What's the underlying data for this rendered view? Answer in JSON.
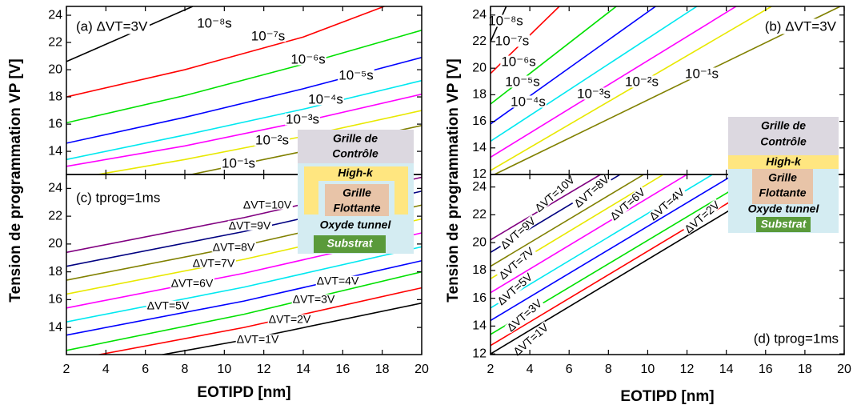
{
  "chart_data": [
    {
      "type": "line",
      "panel_label": "(a) ΔVT=3V",
      "ylabel": "Tension de programmation VP [V]",
      "xlim": [
        2,
        20
      ],
      "xticks": [
        2,
        4,
        6,
        8,
        10,
        12,
        14,
        16,
        18,
        20
      ],
      "ylim": [
        12.3,
        24.65
      ],
      "yticks": [
        14,
        16,
        18,
        20,
        22,
        24
      ],
      "series": [
        {
          "name": "10⁻⁸s",
          "color": "#000000",
          "x": [
            2,
            5,
            8.4
          ],
          "values": [
            20.6,
            22.5,
            24.65
          ]
        },
        {
          "name": "10⁻⁷s",
          "color": "#ff0000",
          "x": [
            2,
            8,
            14,
            18.1
          ],
          "values": [
            18.0,
            20.0,
            22.4,
            24.65
          ]
        },
        {
          "name": "10⁻⁶s",
          "color": "#00e000",
          "x": [
            2,
            8,
            14,
            20
          ],
          "values": [
            16.1,
            18.1,
            20.4,
            22.9
          ]
        },
        {
          "name": "10⁻⁵s",
          "color": "#0000ff",
          "x": [
            2,
            8,
            14,
            20
          ],
          "values": [
            14.6,
            16.5,
            18.6,
            20.9
          ]
        },
        {
          "name": "10⁻⁴s",
          "color": "#00e8f0",
          "x": [
            2,
            8,
            14,
            20
          ],
          "values": [
            13.4,
            15.2,
            17.1,
            19.2
          ]
        },
        {
          "name": "10⁻³s",
          "color": "#ff00ff",
          "x": [
            2,
            8,
            14,
            20
          ],
          "values": [
            12.9,
            14.4,
            16.2,
            18.2
          ]
        },
        {
          "name": "10⁻²s",
          "color": "#e8e800",
          "x": [
            2,
            8,
            14,
            20
          ],
          "values": [
            11.9,
            13.4,
            15.1,
            17.0
          ]
        },
        {
          "name": "10⁻¹s",
          "color": "#808000",
          "x": [
            2,
            8,
            14,
            20
          ],
          "values": [
            10.5,
            12.2,
            14.0,
            15.9
          ]
        }
      ]
    },
    {
      "type": "line",
      "panel_label": "(b) ΔVT=3V",
      "ylabel": "Tension de programmation VP [V]",
      "xlim": [
        2,
        20
      ],
      "xticks": [
        2,
        4,
        6,
        8,
        10,
        12,
        14,
        16,
        18,
        20
      ],
      "ylim": [
        12,
        24.65
      ],
      "yticks": [
        12,
        14,
        16,
        18,
        20,
        22,
        24
      ],
      "series": [
        {
          "name": "10⁻⁸s",
          "color": "#000000",
          "x": [
            2,
            2.8
          ],
          "values": [
            22.0,
            24.65
          ]
        },
        {
          "name": "10⁻⁷s",
          "color": "#ff0000",
          "x": [
            2,
            5.5
          ],
          "values": [
            19.6,
            24.65
          ]
        },
        {
          "name": "10⁻⁶s",
          "color": "#00e000",
          "x": [
            2,
            8.4
          ],
          "values": [
            17.3,
            24.65
          ]
        },
        {
          "name": "10⁻⁵s",
          "color": "#0000ff",
          "x": [
            2,
            10.4
          ],
          "values": [
            15.8,
            24.65
          ]
        },
        {
          "name": "10⁻⁴s",
          "color": "#00e8f0",
          "x": [
            2,
            12.5
          ],
          "values": [
            14.5,
            24.65
          ]
        },
        {
          "name": "10⁻³s",
          "color": "#ff00ff",
          "x": [
            2,
            14.5
          ],
          "values": [
            13.3,
            24.65
          ]
        },
        {
          "name": "10⁻²s",
          "color": "#e8e800",
          "x": [
            2,
            16.3
          ],
          "values": [
            12.3,
            24.65
          ]
        },
        {
          "name": "10⁻¹s",
          "color": "#808000",
          "x": [
            2.2,
            19.8
          ],
          "values": [
            12.0,
            24.65
          ]
        }
      ]
    },
    {
      "type": "line",
      "panel_label": "(c) tprog=1ms",
      "xlabel": "EOTIPD [nm]",
      "xlim": [
        2,
        20
      ],
      "xticks": [
        2,
        4,
        6,
        8,
        10,
        12,
        14,
        16,
        18,
        20
      ],
      "ylim": [
        12.05,
        25.0
      ],
      "yticks": [
        14,
        16,
        18,
        20,
        22,
        24
      ],
      "series": [
        {
          "name": "ΔVT=1V",
          "color": "#000000",
          "x": [
            2,
            11,
            20
          ],
          "values": [
            10.8,
            13.1,
            15.75
          ]
        },
        {
          "name": "ΔVT=2V",
          "color": "#ff0000",
          "x": [
            2,
            11,
            20
          ],
          "values": [
            11.6,
            14.0,
            16.85
          ]
        },
        {
          "name": "ΔVT=3V",
          "color": "#00e000",
          "x": [
            2,
            11,
            20
          ],
          "values": [
            12.35,
            14.95,
            18.0
          ]
        },
        {
          "name": "ΔVT=4V",
          "color": "#0000ff",
          "x": [
            2,
            11,
            20
          ],
          "values": [
            13.45,
            15.9,
            18.8
          ]
        },
        {
          "name": "ΔVT=5V",
          "color": "#00e8f0",
          "x": [
            2,
            11,
            20
          ],
          "values": [
            14.4,
            16.9,
            19.8
          ]
        },
        {
          "name": "ΔVT=6V",
          "color": "#ff00ff",
          "x": [
            2,
            11,
            20
          ],
          "values": [
            15.4,
            17.9,
            20.8
          ]
        },
        {
          "name": "ΔVT=7V",
          "color": "#e8e800",
          "x": [
            2,
            11,
            20
          ],
          "values": [
            16.4,
            18.9,
            21.8
          ]
        },
        {
          "name": "ΔVT=8V",
          "color": "#808000",
          "x": [
            2,
            11,
            20
          ],
          "values": [
            17.4,
            19.9,
            22.8
          ]
        },
        {
          "name": "ΔVT=9V",
          "color": "#000080",
          "x": [
            2,
            11,
            20
          ],
          "values": [
            18.4,
            20.9,
            23.8
          ]
        },
        {
          "name": "ΔVT=10V",
          "color": "#800080",
          "x": [
            2,
            11,
            20
          ],
          "values": [
            19.4,
            21.9,
            24.8
          ]
        }
      ]
    },
    {
      "type": "line",
      "panel_label": "(d) tprog=1ms",
      "xlabel": "EOTIPD [nm]",
      "xlim": [
        2,
        20
      ],
      "xticks": [
        2,
        4,
        6,
        8,
        10,
        12,
        14,
        16,
        18,
        20
      ],
      "ylim": [
        11.95,
        24.9
      ],
      "yticks": [
        12,
        14,
        16,
        18,
        20,
        22,
        24
      ],
      "series": [
        {
          "name": "ΔVT=1V",
          "color": "#000000",
          "x": [
            2,
            17.2
          ],
          "values": [
            12.0,
            24.9
          ]
        },
        {
          "name": "ΔVT=2V",
          "color": "#ff0000",
          "x": [
            2,
            16.5
          ],
          "values": [
            12.6,
            24.9
          ]
        },
        {
          "name": "ΔVT=3V",
          "color": "#00e000",
          "x": [
            2,
            15.6
          ],
          "values": [
            13.4,
            24.9
          ]
        },
        {
          "name": "ΔVT=4V",
          "color": "#0000ff",
          "x": [
            2,
            14.4
          ],
          "values": [
            14.4,
            24.9
          ]
        },
        {
          "name": "ΔVT=5V",
          "color": "#00e8f0",
          "x": [
            2,
            13.3
          ],
          "values": [
            15.3,
            24.9
          ]
        },
        {
          "name": "ΔVT=6V",
          "color": "#ff00ff",
          "x": [
            2,
            12.0
          ],
          "values": [
            16.4,
            24.9
          ]
        },
        {
          "name": "ΔVT=7V",
          "color": "#e8e800",
          "x": [
            2,
            10.8
          ],
          "values": [
            17.4,
            24.9
          ]
        },
        {
          "name": "ΔVT=8V",
          "color": "#808000",
          "x": [
            2,
            9.8
          ],
          "values": [
            18.3,
            24.9
          ]
        },
        {
          "name": "ΔVT=9V",
          "color": "#000080",
          "x": [
            2,
            8.6
          ],
          "values": [
            19.3,
            24.9
          ]
        },
        {
          "name": "ΔVT=10V",
          "color": "#800080",
          "x": [
            2,
            7.6
          ],
          "values": [
            20.2,
            24.9
          ]
        }
      ]
    }
  ],
  "insets": [
    {
      "control_gate": [
        "Grille de",
        "Contrôle"
      ],
      "high_k": "High-k",
      "floating_gate": [
        "Grille",
        "Flottante"
      ],
      "tunnel_oxide": "Oxyde tunnel",
      "substrate": "Substrat"
    },
    {
      "control_gate": [
        "Grille de",
        "Contrôle"
      ],
      "high_k": "High-k",
      "floating_gate": [
        "Grille",
        "Flottante"
      ],
      "tunnel_oxide": "Oxyde tunnel",
      "substrate": "Substrat"
    }
  ]
}
